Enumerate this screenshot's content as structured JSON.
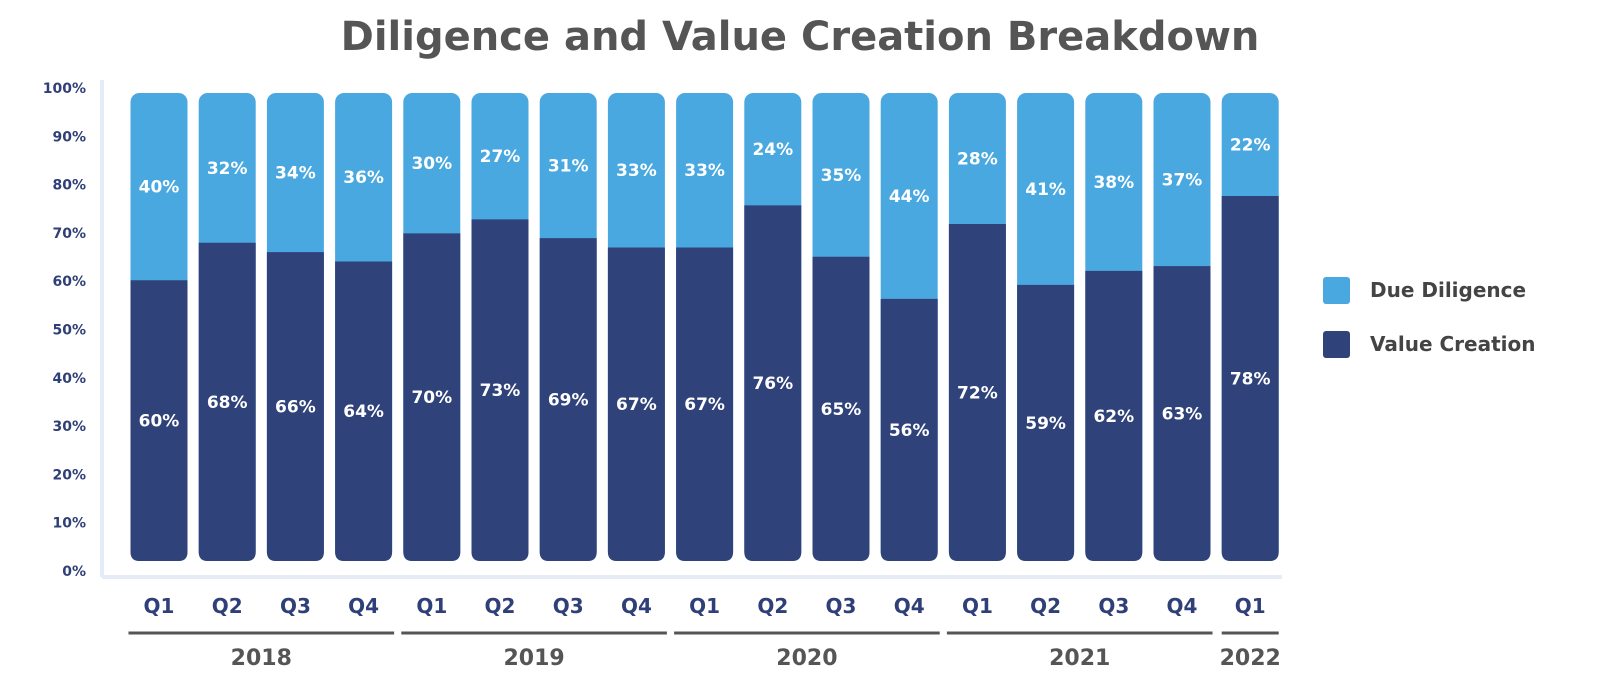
{
  "chart_data": {
    "type": "bar",
    "stacked": true,
    "title": "Diligence and Value Creation Breakdown",
    "categories": [
      "Q1",
      "Q2",
      "Q3",
      "Q4",
      "Q1",
      "Q2",
      "Q3",
      "Q4",
      "Q1",
      "Q2",
      "Q3",
      "Q4",
      "Q1",
      "Q2",
      "Q3",
      "Q4",
      "Q1"
    ],
    "groups": [
      {
        "label": "2018",
        "count": 4
      },
      {
        "label": "2019",
        "count": 4
      },
      {
        "label": "2020",
        "count": 4
      },
      {
        "label": "2021",
        "count": 4
      },
      {
        "label": "2022",
        "count": 1
      }
    ],
    "series": [
      {
        "name": "Value Creation",
        "color": "#2f4279",
        "values": [
          60,
          68,
          66,
          64,
          70,
          73,
          69,
          67,
          67,
          76,
          65,
          56,
          72,
          59,
          62,
          63,
          78
        ],
        "labels": [
          "60%",
          "68%",
          "66%",
          "64%",
          "70%",
          "73%",
          "69%",
          "67%",
          "67%",
          "76%",
          "65%",
          "56%",
          "72%",
          "59%",
          "62%",
          "63%",
          "78%"
        ]
      },
      {
        "name": "Due Diligence",
        "color": "#4aa8e0",
        "values": [
          40,
          32,
          34,
          36,
          30,
          27,
          31,
          33,
          33,
          24,
          35,
          44,
          28,
          41,
          38,
          37,
          22
        ],
        "labels": [
          "40%",
          "32%",
          "34%",
          "36%",
          "30%",
          "27%",
          "31%",
          "33%",
          "33%",
          "24%",
          "35%",
          "44%",
          "28%",
          "41%",
          "38%",
          "37%",
          "22%"
        ]
      }
    ],
    "legend": {
      "position": "right",
      "items": [
        {
          "label": "Due Diligence",
          "color": "#4aa8e0"
        },
        {
          "label": "Value Creation",
          "color": "#2f4279"
        }
      ]
    },
    "ylim": [
      0,
      100
    ],
    "yticks": [
      "0%",
      "10%",
      "20%",
      "30%",
      "40%",
      "50%",
      "60%",
      "70%",
      "80%",
      "90%",
      "100%"
    ],
    "grid": false,
    "axis_color": "#e6ecf7"
  }
}
